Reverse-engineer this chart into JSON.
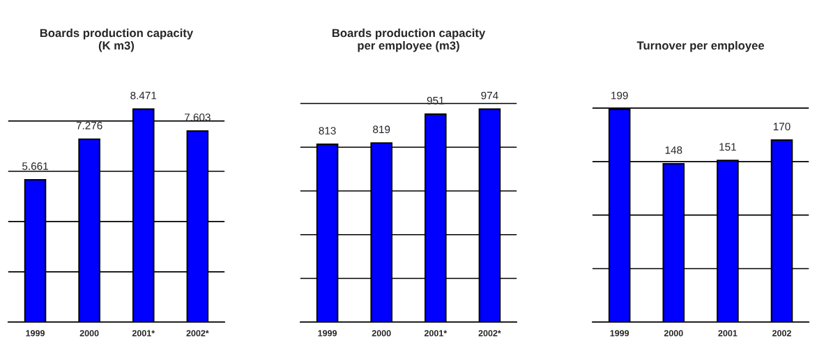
{
  "chart_data": [
    {
      "type": "bar",
      "title": "Boards production capacity\n(K m3)",
      "categories": [
        "1999",
        "2000",
        "2001*",
        "2002*"
      ],
      "values": [
        5.661,
        7.276,
        8.471,
        7.603
      ],
      "color": "#0000ff",
      "data_labels": true,
      "grid": "y",
      "legend": false,
      "tick_labels": "x"
    },
    {
      "type": "bar",
      "title": "Boards production capacity\nper employee (m3)",
      "categories": [
        "1999",
        "2000",
        "2001*",
        "2002*"
      ],
      "values": [
        813,
        819,
        951,
        974
      ],
      "color": "#0000ff",
      "data_labels": true,
      "grid": "y",
      "legend": false,
      "tick_labels": "x"
    },
    {
      "type": "bar",
      "title": "Turnover per employee",
      "categories": [
        "1999",
        "2000",
        "2001",
        "2002"
      ],
      "values": [
        199,
        148,
        151,
        170
      ],
      "color": "#0000ff",
      "data_labels": true,
      "grid": "y",
      "legend": false,
      "tick_labels": "x"
    }
  ]
}
